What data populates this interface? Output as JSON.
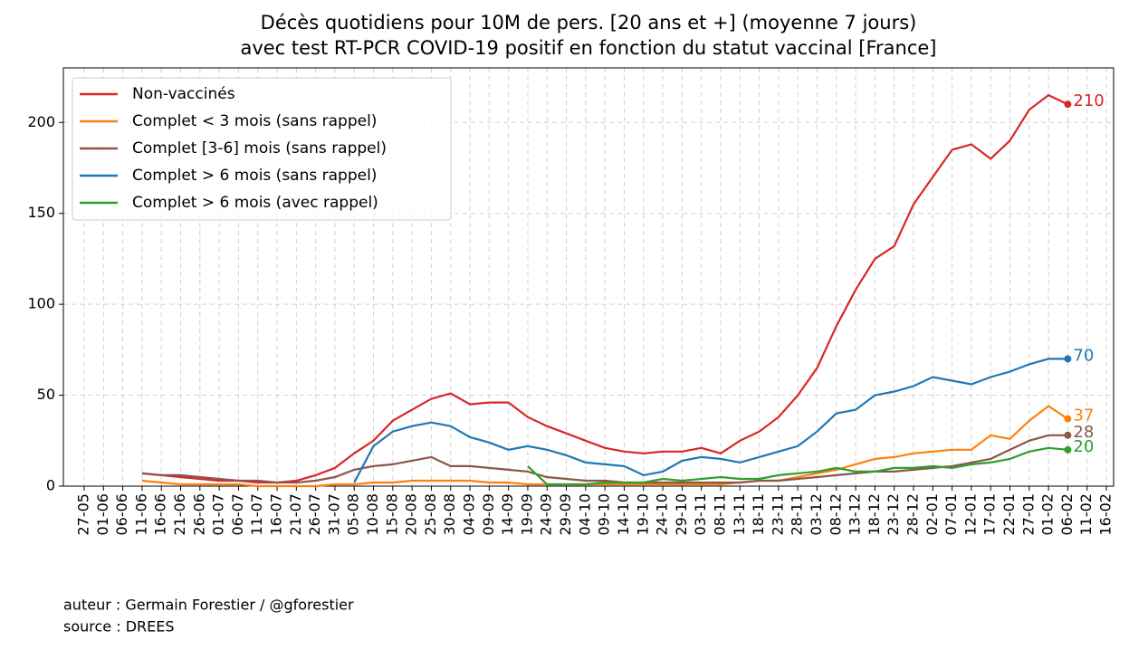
{
  "chart_data": {
    "type": "line",
    "title": "Décès quotidiens pour 10M de pers. [20 ans et +] (moyenne 7 jours)",
    "subtitle": "avec test RT-PCR COVID-19 positif en fonction du statut vaccinal [France]",
    "x": [
      "27-05",
      "01-06",
      "06-06",
      "11-06",
      "16-06",
      "21-06",
      "26-06",
      "01-07",
      "06-07",
      "11-07",
      "16-07",
      "21-07",
      "26-07",
      "31-07",
      "05-08",
      "10-08",
      "15-08",
      "20-08",
      "25-08",
      "30-08",
      "04-09",
      "09-09",
      "14-09",
      "19-09",
      "24-09",
      "29-09",
      "04-10",
      "09-10",
      "14-10",
      "19-10",
      "24-10",
      "29-10",
      "03-11",
      "08-11",
      "13-11",
      "18-11",
      "23-11",
      "28-11",
      "03-12",
      "08-12",
      "13-12",
      "18-12",
      "23-12",
      "28-12",
      "02-01",
      "07-01",
      "12-01",
      "17-01",
      "22-01",
      "27-01",
      "01-02",
      "06-02",
      "11-02",
      "16-02"
    ],
    "series": [
      {
        "name": "Non-vaccinés",
        "color": "#d62728",
        "values": [
          null,
          null,
          null,
          7,
          6,
          5,
          4,
          3,
          3,
          2,
          2,
          3,
          6,
          10,
          18,
          25,
          36,
          42,
          48,
          51,
          45,
          46,
          46,
          38,
          33,
          29,
          25,
          21,
          19,
          18,
          19,
          19,
          21,
          18,
          25,
          30,
          38,
          50,
          65,
          88,
          108,
          125,
          132,
          155,
          170,
          185,
          188,
          180,
          190,
          207,
          215,
          210,
          null,
          null
        ]
      },
      {
        "name": "Complet < 3 mois (sans rappel)",
        "color": "#ff7f0e",
        "values": [
          null,
          null,
          null,
          3,
          2,
          1,
          1,
          1,
          1,
          0,
          0,
          0,
          0,
          1,
          1,
          2,
          2,
          3,
          3,
          3,
          3,
          2,
          2,
          1,
          1,
          1,
          1,
          1,
          1,
          1,
          1,
          1,
          1,
          1,
          2,
          3,
          3,
          5,
          7,
          9,
          12,
          15,
          16,
          18,
          19,
          20,
          20,
          28,
          26,
          36,
          44,
          37,
          null,
          null
        ]
      },
      {
        "name": "Complet [3-6] mois (sans rappel)",
        "color": "#8c564b",
        "values": [
          null,
          null,
          null,
          7,
          6,
          6,
          5,
          4,
          3,
          3,
          2,
          2,
          3,
          5,
          9,
          11,
          12,
          14,
          16,
          11,
          11,
          10,
          9,
          8,
          5,
          4,
          3,
          3,
          2,
          2,
          2,
          2,
          2,
          2,
          2,
          3,
          3,
          4,
          5,
          6,
          7,
          8,
          8,
          9,
          10,
          11,
          13,
          15,
          20,
          25,
          28,
          28,
          null,
          null
        ]
      },
      {
        "name": "Complet > 6 mois (sans rappel)",
        "color": "#1f77b4",
        "values": [
          null,
          null,
          null,
          null,
          null,
          null,
          null,
          null,
          null,
          null,
          null,
          null,
          null,
          null,
          2,
          22,
          30,
          33,
          35,
          33,
          27,
          24,
          20,
          22,
          20,
          17,
          13,
          12,
          11,
          6,
          8,
          14,
          16,
          15,
          13,
          16,
          19,
          22,
          30,
          40,
          42,
          50,
          52,
          55,
          60,
          58,
          56,
          60,
          63,
          67,
          70,
          70,
          null,
          null
        ]
      },
      {
        "name": "Complet > 6 mois (avec rappel)",
        "color": "#2ca02c",
        "values": [
          null,
          null,
          null,
          null,
          null,
          null,
          null,
          null,
          null,
          null,
          null,
          null,
          null,
          null,
          null,
          null,
          null,
          null,
          null,
          null,
          null,
          null,
          null,
          11,
          1,
          1,
          1,
          2,
          2,
          2,
          4,
          3,
          4,
          5,
          4,
          4,
          6,
          7,
          8,
          10,
          8,
          8,
          10,
          10,
          11,
          10,
          12,
          13,
          15,
          19,
          21,
          20,
          null,
          null
        ]
      }
    ],
    "ylim": [
      0,
      230
    ],
    "yticks": [
      0,
      50,
      100,
      150,
      200
    ],
    "grid": true,
    "legend": "upper left",
    "footer": [
      "auteur : Germain Forestier / @gforestier",
      "source : DREES"
    ]
  }
}
